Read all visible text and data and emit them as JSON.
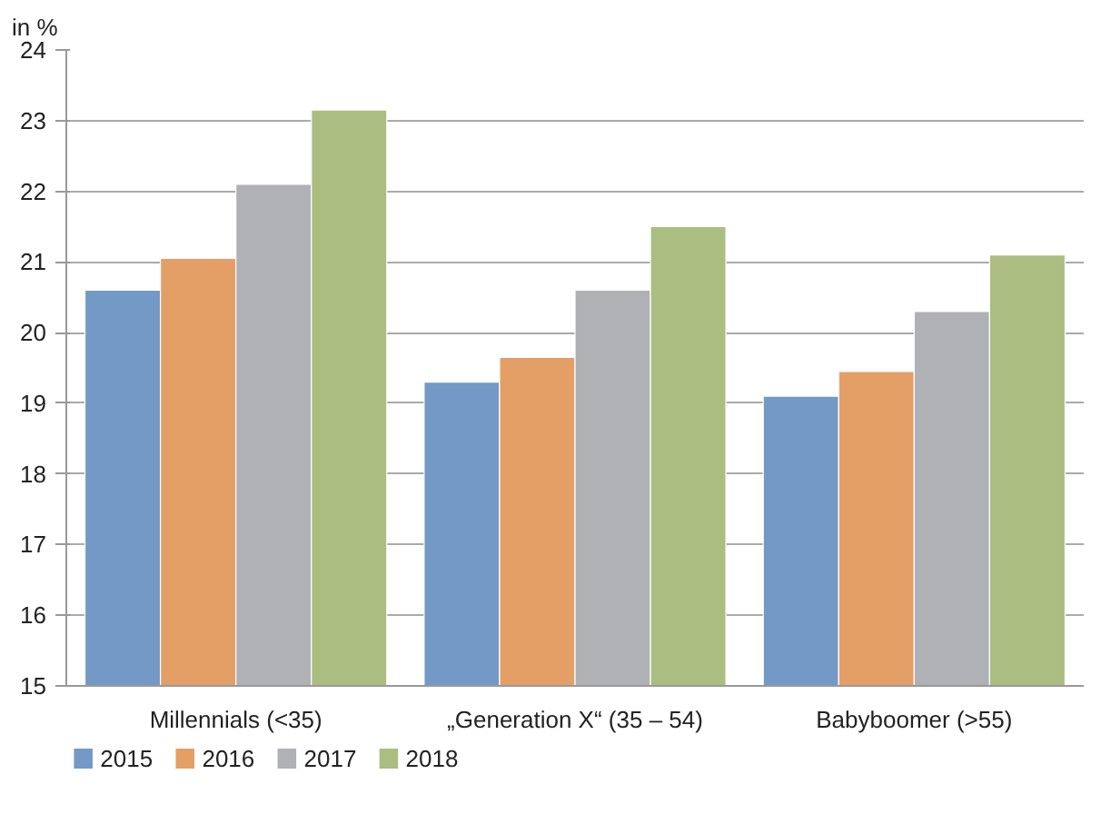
{
  "chart_data": {
    "type": "bar",
    "ylabel": "in %",
    "categories": [
      "Millennials (<35)",
      "„Generation X“ (35 – 54)",
      "Babyboomer (>55)"
    ],
    "series": [
      {
        "name": "2015",
        "color": "#7399c6",
        "values": [
          20.6,
          19.3,
          19.1
        ]
      },
      {
        "name": "2016",
        "color": "#e39f66",
        "values": [
          21.05,
          19.65,
          19.45
        ]
      },
      {
        "name": "2017",
        "color": "#b0b1b5",
        "values": [
          22.1,
          20.6,
          20.3
        ]
      },
      {
        "name": "2018",
        "color": "#abbd80",
        "values": [
          23.15,
          21.5,
          21.1
        ]
      }
    ],
    "ylim": [
      15,
      24
    ],
    "yticks": [
      15,
      16,
      17,
      18,
      19,
      20,
      21,
      22,
      23,
      24
    ],
    "grid": "y",
    "legend": "bottom left"
  }
}
